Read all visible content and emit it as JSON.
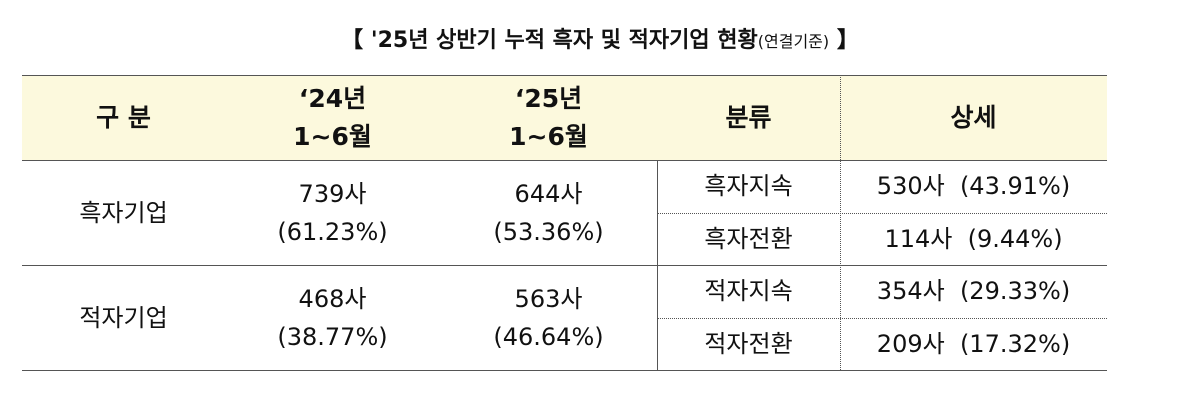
{
  "title": {
    "open": "【",
    "text": "'25년 상반기 누적 흑자 및 적자기업 현황",
    "basis": "(연결기준)",
    "close": "】"
  },
  "table": {
    "header": [
      [
        "구 분"
      ],
      [
        "‘24년",
        "1~6월"
      ],
      [
        "‘25년",
        "1~6월"
      ],
      [
        "분류"
      ],
      [
        "상세"
      ]
    ],
    "rows": [
      {
        "group": "흑자기업",
        "h1": [
          "739사",
          "(61.23%)"
        ],
        "h2": [
          "644사",
          "(53.36%)"
        ],
        "details": [
          {
            "kind": "흑자지속",
            "detail": "530사  (43.91%)"
          },
          {
            "kind": "흑자전환",
            "detail": "114사  (9.44%)"
          }
        ]
      },
      {
        "group": "적자기업",
        "h1": [
          "468사",
          "(38.77%)"
        ],
        "h2": [
          "563사",
          "(46.64%)"
        ],
        "details": [
          {
            "kind": "적자지속",
            "detail": "354사  (29.33%)"
          },
          {
            "kind": "적자전환",
            "detail": "209사  (17.32%)"
          }
        ]
      }
    ]
  }
}
